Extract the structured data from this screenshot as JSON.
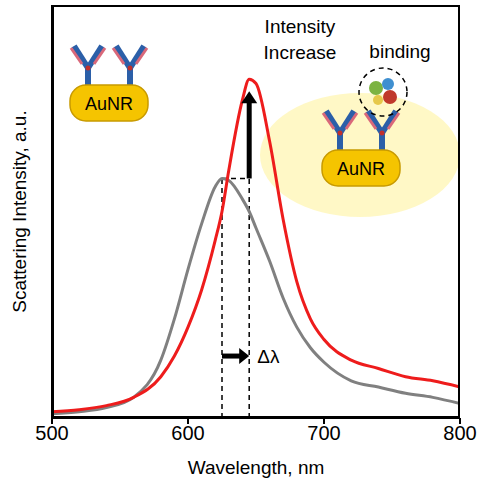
{
  "chart_data": {
    "type": "line",
    "x_label": "Wavelength, nm",
    "y_label": "Scattering Intensity, a.u.",
    "xlim": [
      500,
      800
    ],
    "xticks": [
      500,
      600,
      700,
      800
    ],
    "ylim": [
      0,
      1
    ],
    "tick_labels": "x",
    "annotations": [
      "Intensity Increase",
      "binding",
      "AuNR",
      "AuNR",
      "Δλ"
    ],
    "x": [
      500,
      520,
      540,
      560,
      580,
      590,
      600,
      610,
      620,
      625,
      630,
      640,
      645,
      650,
      660,
      670,
      680,
      690,
      700,
      720,
      740,
      760,
      780,
      800
    ],
    "series": [
      {
        "color": "#808080",
        "values": [
          0.01,
          0.015,
          0.025,
          0.05,
          0.14,
          0.24,
          0.36,
          0.47,
          0.56,
          0.58,
          0.575,
          0.53,
          0.5,
          0.46,
          0.38,
          0.29,
          0.22,
          0.17,
          0.135,
          0.09,
          0.075,
          0.06,
          0.05,
          0.035
        ]
      },
      {
        "color": "#ee1c1c",
        "values": [
          0.015,
          0.02,
          0.03,
          0.05,
          0.1,
          0.15,
          0.22,
          0.31,
          0.43,
          0.5,
          0.6,
          0.77,
          0.82,
          0.81,
          0.67,
          0.48,
          0.33,
          0.24,
          0.19,
          0.14,
          0.12,
          0.1,
          0.09,
          0.075
        ]
      }
    ]
  }
}
